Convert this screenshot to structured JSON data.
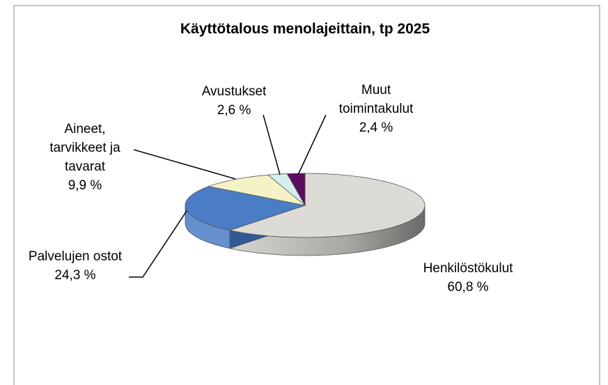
{
  "chart_data": {
    "type": "pie3d",
    "title": "Käyttötalous menolajeittain, tp 2025",
    "categories": [
      "Henkilöstökulut",
      "Palvelujen ostot",
      "Aineet,\ntarvikkeet ja\ntavarat",
      "Avustukset",
      "Muut\ntoimintakulut"
    ],
    "values": [
      60.8,
      24.3,
      9.9,
      2.6,
      2.4
    ],
    "value_labels": [
      "60,8 %",
      "24,3 %",
      "9,9 %",
      "2,6 %",
      "2,4 %"
    ],
    "colors": [
      "#dddbd5",
      "#4a7dc6",
      "#f3f3c6",
      "#d3eff0",
      "#5c0d5e"
    ]
  }
}
